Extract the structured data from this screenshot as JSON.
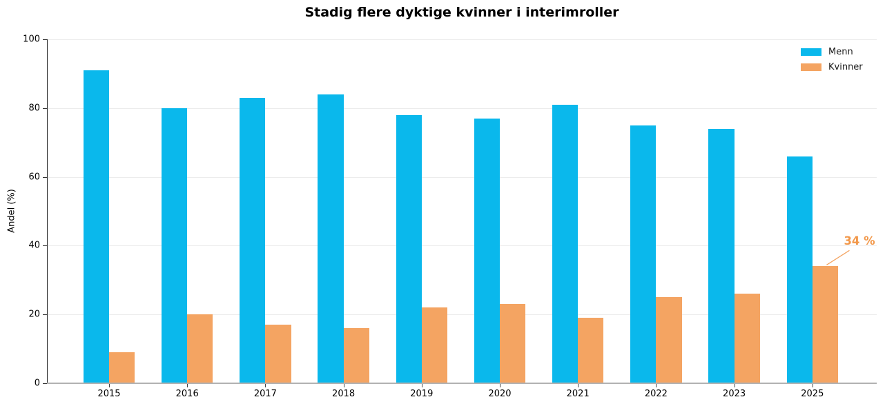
{
  "chart_data": {
    "type": "bar",
    "title": "Stadig flere dyktige kvinner i interimroller",
    "xlabel": "",
    "ylabel": "Andel (%)",
    "categories": [
      "2015",
      "2016",
      "2017",
      "2018",
      "2019",
      "2020",
      "2021",
      "2022",
      "2023",
      "2025"
    ],
    "series": [
      {
        "name": "Menn",
        "color": "#0ab8ec",
        "values": [
          91,
          80,
          83,
          84,
          78,
          77,
          81,
          75,
          74,
          66
        ]
      },
      {
        "name": "Kvinner",
        "color": "#f4a462",
        "values": [
          9,
          20,
          17,
          16,
          22,
          23,
          19,
          25,
          26,
          34
        ]
      }
    ],
    "ylim": [
      0,
      100
    ],
    "yticks": [
      0,
      20,
      40,
      60,
      80,
      100
    ],
    "grid": true,
    "legend_position": "upper right",
    "annotation": {
      "text": "34 %",
      "target_category": "2025",
      "target_series": "Kvinner",
      "target_value": 34,
      "color": "#f2984a"
    }
  }
}
